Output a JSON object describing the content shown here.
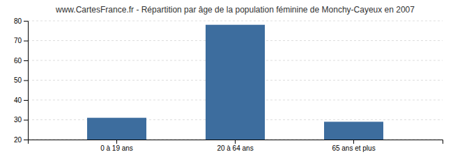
{
  "chart_data": {
    "type": "bar",
    "title": "www.CartesFrance.fr - Répartition par âge de la population féminine de Monchy-Cayeux en 2007",
    "categories": [
      "0 à 19 ans",
      "20 à 64 ans",
      "65 ans et plus"
    ],
    "values": [
      31,
      78,
      29
    ],
    "color": "#3d6d9e",
    "ylim": [
      20,
      80
    ],
    "yticks": [
      20,
      30,
      40,
      50,
      60,
      70,
      80
    ],
    "grid": true
  }
}
